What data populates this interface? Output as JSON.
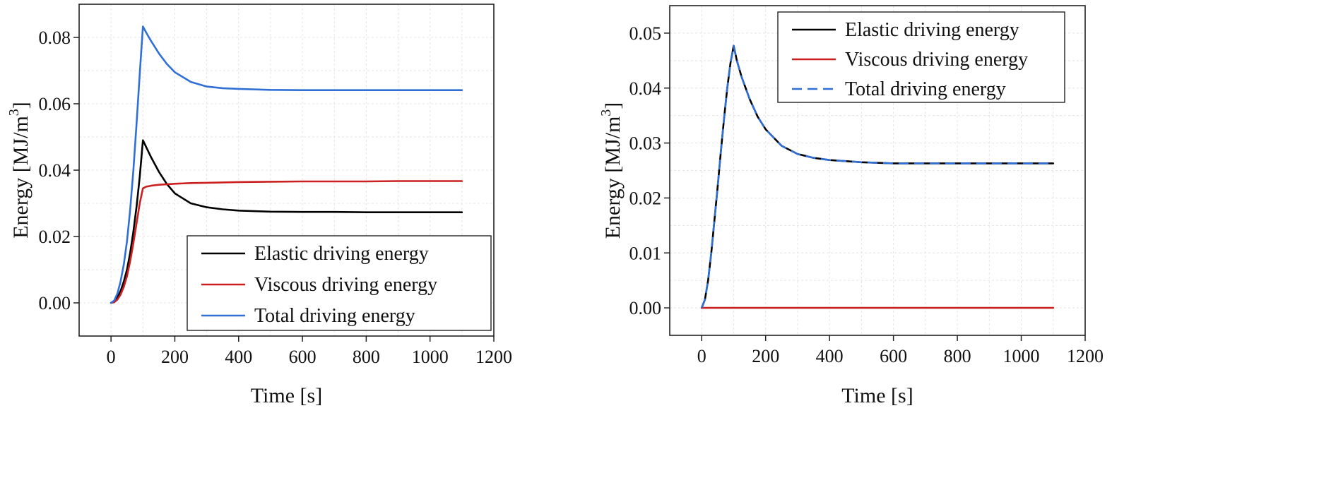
{
  "chart_data": [
    {
      "type": "line",
      "title": "",
      "xlabel": "Time [s]",
      "ylabel": "Energy [MJ/m",
      "ylabel_sup": "3",
      "ylabel_end": "]",
      "xlim": [
        -100,
        1200
      ],
      "ylim": [
        -0.01,
        0.09
      ],
      "xticks": [
        0,
        200,
        400,
        600,
        800,
        1000,
        1200
      ],
      "xtick_labels": [
        "0",
        "200",
        "400",
        "600",
        "800",
        "1000",
        "1200"
      ],
      "yticks": [
        0.0,
        0.02,
        0.04,
        0.06,
        0.08
      ],
      "ytick_labels": [
        "0.00",
        "0.02",
        "0.04",
        "0.06",
        "0.08"
      ],
      "grid": true,
      "legend_position": "bottom-right",
      "series": [
        {
          "name": "Elastic driving energy",
          "color": "#000000",
          "dash": "solid",
          "x": [
            0,
            10,
            20,
            30,
            40,
            50,
            60,
            70,
            80,
            90,
            100,
            110,
            125,
            150,
            175,
            200,
            250,
            300,
            350,
            400,
            500,
            600,
            700,
            800,
            900,
            1000,
            1100
          ],
          "y": [
            0,
            0.0004,
            0.0016,
            0.0036,
            0.0064,
            0.01,
            0.015,
            0.0215,
            0.029,
            0.038,
            0.049,
            0.047,
            0.044,
            0.0395,
            0.0358,
            0.033,
            0.03,
            0.0288,
            0.0282,
            0.0278,
            0.0275,
            0.0274,
            0.0274,
            0.0273,
            0.0273,
            0.0273,
            0.0273
          ]
        },
        {
          "name": "Viscous  driving energy",
          "color": "#cc1f1f",
          "dash": "solid",
          "x": [
            0,
            10,
            20,
            30,
            40,
            50,
            60,
            70,
            80,
            90,
            100,
            110,
            125,
            150,
            200,
            250,
            300,
            400,
            500,
            600,
            700,
            800,
            900,
            1000,
            1100
          ],
          "y": [
            0,
            0.0002,
            0.001,
            0.0025,
            0.0048,
            0.008,
            0.0125,
            0.018,
            0.024,
            0.03,
            0.0345,
            0.035,
            0.0353,
            0.0356,
            0.0359,
            0.0361,
            0.0362,
            0.0364,
            0.0365,
            0.0366,
            0.0366,
            0.0366,
            0.0367,
            0.0367,
            0.0367
          ]
        },
        {
          "name": "Total  driving energy",
          "color": "#2f6fd6",
          "dash": "solid",
          "x": [
            0,
            10,
            20,
            30,
            40,
            50,
            60,
            70,
            80,
            90,
            100,
            110,
            125,
            150,
            175,
            200,
            250,
            300,
            350,
            400,
            500,
            600,
            700,
            800,
            900,
            1000,
            1100
          ],
          "y": [
            0,
            0.0007,
            0.0028,
            0.0065,
            0.0115,
            0.0185,
            0.028,
            0.04,
            0.054,
            0.069,
            0.0833,
            0.0815,
            0.079,
            0.0752,
            0.072,
            0.0695,
            0.0666,
            0.0652,
            0.0647,
            0.0645,
            0.0642,
            0.0641,
            0.0641,
            0.0641,
            0.0641,
            0.0641,
            0.0641
          ]
        }
      ]
    },
    {
      "type": "line",
      "title": "",
      "xlabel": "Time [s]",
      "ylabel": "Energy [MJ/m",
      "ylabel_sup": "3",
      "ylabel_end": "]",
      "xlim": [
        -100,
        1200
      ],
      "ylim": [
        -0.005,
        0.055
      ],
      "xticks": [
        0,
        200,
        400,
        600,
        800,
        1000,
        1200
      ],
      "xtick_labels": [
        "0",
        "200",
        "400",
        "600",
        "800",
        "1000",
        "1200"
      ],
      "yticks": [
        0.0,
        0.01,
        0.02,
        0.03,
        0.04,
        0.05
      ],
      "ytick_labels": [
        "0.00",
        "0.01",
        "0.02",
        "0.03",
        "0.04",
        "0.05"
      ],
      "grid": true,
      "legend_position": "top-right",
      "series": [
        {
          "name": "Elastic driving energy",
          "color": "#000000",
          "dash": "solid",
          "x": [
            0,
            10,
            20,
            30,
            40,
            50,
            60,
            70,
            80,
            90,
            100,
            110,
            125,
            150,
            175,
            200,
            250,
            300,
            350,
            400,
            500,
            600,
            700,
            800,
            900,
            1000,
            1100
          ],
          "y": [
            0,
            0.0015,
            0.005,
            0.01,
            0.016,
            0.022,
            0.0285,
            0.0345,
            0.04,
            0.0445,
            0.0477,
            0.045,
            0.042,
            0.038,
            0.0348,
            0.0325,
            0.0295,
            0.028,
            0.0273,
            0.0269,
            0.0265,
            0.0263,
            0.0263,
            0.0263,
            0.0263,
            0.0263,
            0.0263
          ]
        },
        {
          "name": "Viscous  driving energy",
          "color": "#cc1f1f",
          "dash": "solid",
          "x": [
            0,
            1100
          ],
          "y": [
            0,
            0
          ]
        },
        {
          "name": "Total  driving energy",
          "color": "#2f6fd6",
          "dash": "dashed",
          "x": [
            0,
            10,
            20,
            30,
            40,
            50,
            60,
            70,
            80,
            90,
            100,
            110,
            125,
            150,
            175,
            200,
            250,
            300,
            350,
            400,
            500,
            600,
            700,
            800,
            900,
            1000,
            1100
          ],
          "y": [
            0,
            0.0015,
            0.005,
            0.01,
            0.016,
            0.022,
            0.0285,
            0.0345,
            0.04,
            0.0445,
            0.0477,
            0.045,
            0.042,
            0.038,
            0.0348,
            0.0325,
            0.0295,
            0.028,
            0.0273,
            0.0269,
            0.0265,
            0.0263,
            0.0263,
            0.0263,
            0.0263,
            0.0263,
            0.0263
          ]
        }
      ]
    }
  ]
}
